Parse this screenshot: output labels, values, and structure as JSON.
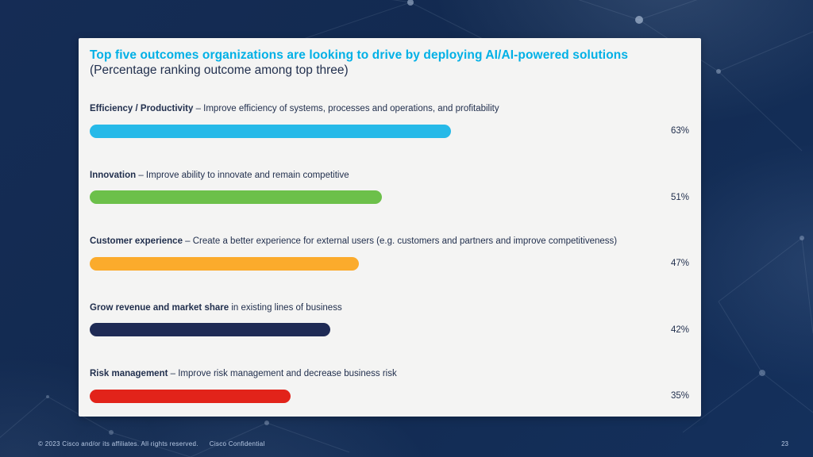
{
  "slide": {
    "title": "Top five outcomes organizations are looking to drive by deploying AI/AI-powered solutions",
    "subtitle": "(Percentage ranking outcome among top three)",
    "footer": {
      "copyright": "© 2023  Cisco and/or its affiliates.  All rights reserved.",
      "confidential": "Cisco Confidential",
      "page_number": "23"
    }
  },
  "colors": {
    "title_accent": "#00b0e6",
    "body_text": "#22304e",
    "card_background": "#f4f4f3",
    "slide_background": "#132a52",
    "footer_text": "#b9cbe6"
  },
  "chart_data": {
    "type": "bar",
    "orientation": "horizontal",
    "title": "Top five outcomes organizations are looking to drive by deploying AI/AI-powered solutions",
    "subtitle": "(Percentage ranking outcome among top three)",
    "unit": "%",
    "xlim": [
      0,
      100
    ],
    "grid": false,
    "legend": "none",
    "bars": [
      {
        "label_bold": "Efficiency / Productivity",
        "label_rest": " – Improve efficiency of systems, processes and operations, and profitability",
        "value": 63,
        "value_label": "63%",
        "color": "#26b9e8"
      },
      {
        "label_bold": "Innovation",
        "label_rest": " – Improve ability to innovate and remain competitive",
        "value": 51,
        "value_label": "51%",
        "color": "#6cc04a"
      },
      {
        "label_bold": "Customer experience",
        "label_rest": " – Create a better experience for external users (e.g. customers and partners and improve competitiveness)",
        "value": 47,
        "value_label": "47%",
        "color": "#fbab2c"
      },
      {
        "label_bold": "Grow revenue and market share",
        "label_rest": " in existing lines of business",
        "value": 42,
        "value_label": "42%",
        "color": "#1f2b55"
      },
      {
        "label_bold": "Risk management",
        "label_rest": " – Improve risk management and decrease business risk",
        "value": 35,
        "value_label": "35%",
        "color": "#e2231a"
      }
    ]
  }
}
